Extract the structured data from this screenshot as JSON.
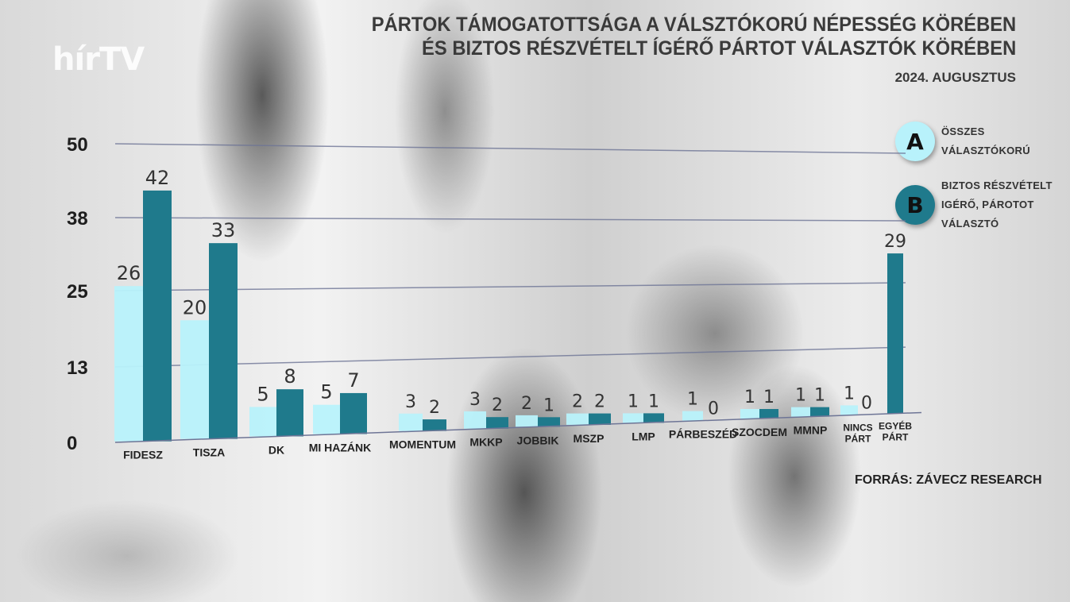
{
  "logo": "hírTV",
  "chart_data": {
    "type": "bar",
    "title": "PÁRTOK TÁMOGATOTTSÁGA A VÁLSZTÓKORÚ NÉPESSÉG KÖRÉBEN",
    "title_line2": "ÉS BIZTOS RÉSZVÉTELT ÍGÉRŐ PÁRTOT VÁLASZTÓK KÖRÉBEN",
    "subtitle": "2024. AUGUSZTUS",
    "source": "FORRÁS: ZÁVECZ RESEARCH",
    "yticks": [
      0,
      13,
      25,
      38,
      50
    ],
    "ylim": [
      0,
      50
    ],
    "grid": true,
    "legend_placement": "right",
    "categories": [
      "FIDESZ",
      "TISZA",
      "DK",
      "MI HAZÁNK",
      "MOMENTUM",
      "MKKP",
      "JOBBIK",
      "MSZP",
      "LMP",
      "PÁRBESZÉD",
      "SZOCDEM",
      "MMNP",
      "NINCS PÁRT",
      "EGYÉB PÁRT"
    ],
    "series": [
      {
        "key": "A",
        "name": "ÖSSZES VÁLASZTÓKORÚ",
        "color": "#b8f2fb",
        "values": [
          26,
          20,
          5,
          5,
          3,
          3,
          2,
          2,
          1,
          1,
          1,
          1,
          1,
          null
        ]
      },
      {
        "key": "B",
        "name": "BIZTOS RÉSZVÉTELT IGÉRŐ, PÁROTOT VÁLASZTÓ",
        "color": "#1f7a8c",
        "values": [
          42,
          33,
          8,
          7,
          2,
          2,
          1,
          2,
          1,
          0,
          1,
          1,
          0,
          29
        ]
      }
    ]
  }
}
